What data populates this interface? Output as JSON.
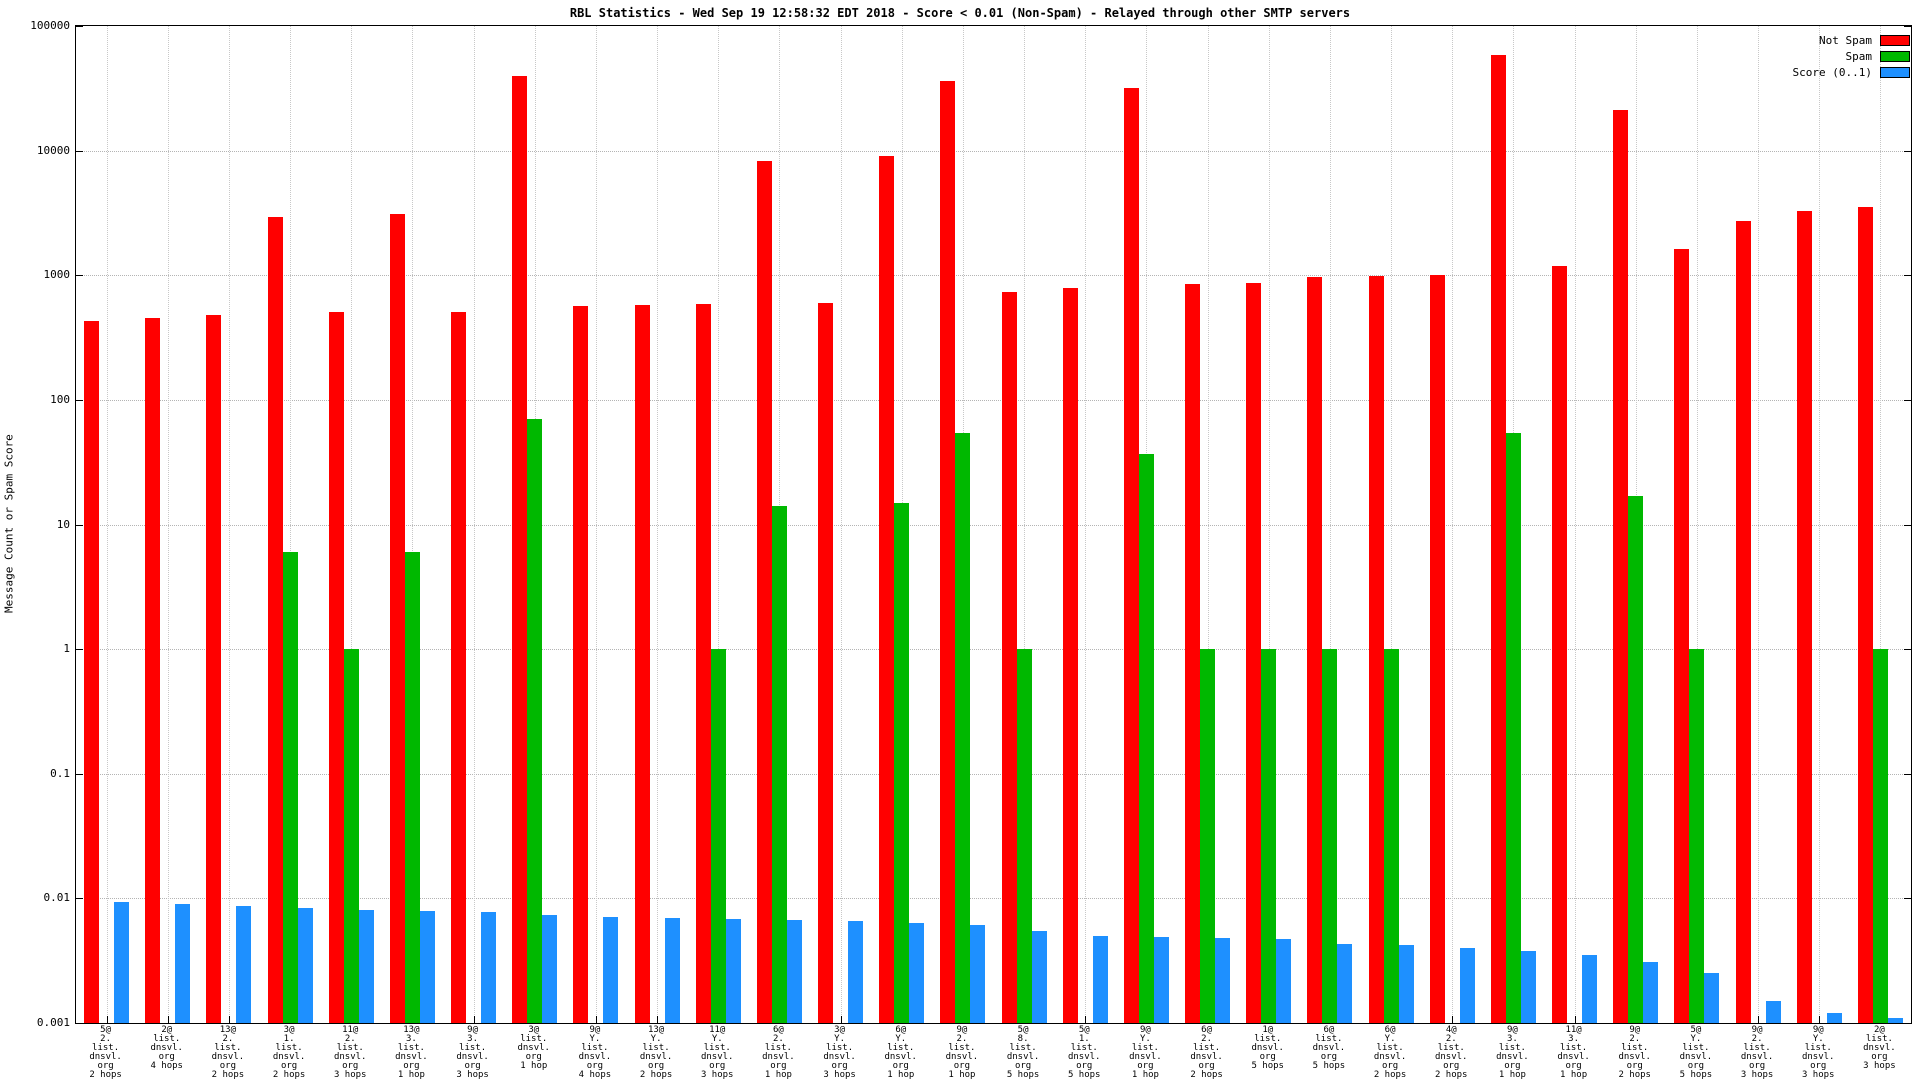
{
  "title": "RBL Statistics - Wed Sep 19 12:58:32 EDT 2018 - Score < 0.01 (Non-Spam) - Relayed through other SMTP servers",
  "ylabel": "Message Count or Spam Score",
  "legend": [
    {
      "label": "Not Spam",
      "color": "#ff0000"
    },
    {
      "label": "Spam",
      "color": "#00b800"
    },
    {
      "label": "Score (0..1)",
      "color": "#1e90ff"
    }
  ],
  "chart_data": {
    "type": "bar",
    "scale": "log",
    "ylim": [
      0.001,
      100000
    ],
    "yticks": [
      0.001,
      0.01,
      0.1,
      1,
      10,
      100,
      1000,
      10000,
      100000
    ],
    "grid": true,
    "legend_position": "top-right",
    "categories": [
      [
        "5@",
        "2.",
        "list.",
        "dnsvl.",
        "org",
        "2 hops"
      ],
      [
        "2@",
        "list.",
        "dnsvl.",
        "org",
        "4 hops"
      ],
      [
        "13@",
        "2.",
        "list.",
        "dnsvl.",
        "org",
        "2 hops"
      ],
      [
        "3@",
        "1.",
        "list.",
        "dnsvl.",
        "org",
        "2 hops"
      ],
      [
        "11@",
        "2.",
        "list.",
        "dnsvl.",
        "org",
        "3 hops"
      ],
      [
        "13@",
        "3.",
        "list.",
        "dnsvl.",
        "org",
        "1 hop"
      ],
      [
        "9@",
        "3.",
        "list.",
        "dnsvl.",
        "org",
        "3 hops"
      ],
      [
        "3@",
        "list.",
        "dnsvl.",
        "org",
        "1 hop"
      ],
      [
        "9@",
        "Y.",
        "list.",
        "dnsvl.",
        "org",
        "4 hops"
      ],
      [
        "13@",
        "Y.",
        "list.",
        "dnsvl.",
        "org",
        "2 hops"
      ],
      [
        "11@",
        "Y.",
        "list.",
        "dnsvl.",
        "org",
        "3 hops"
      ],
      [
        "6@",
        "2.",
        "list.",
        "dnsvl.",
        "org",
        "1 hop"
      ],
      [
        "3@",
        "Y.",
        "list.",
        "dnsvl.",
        "org",
        "3 hops"
      ],
      [
        "6@",
        "Y.",
        "list.",
        "dnsvl.",
        "org",
        "1 hop"
      ],
      [
        "9@",
        "2.",
        "list.",
        "dnsvl.",
        "org",
        "1 hop"
      ],
      [
        "5@",
        "8.",
        "list.",
        "dnsvl.",
        "org",
        "5 hops"
      ],
      [
        "5@",
        "1.",
        "list.",
        "dnsvl.",
        "org",
        "5 hops"
      ],
      [
        "9@",
        "Y.",
        "list.",
        "dnsvl.",
        "org",
        "1 hop"
      ],
      [
        "6@",
        "2.",
        "list.",
        "dnsvl.",
        "org",
        "2 hops"
      ],
      [
        "1@",
        "list.",
        "dnsvl.",
        "org",
        "5 hops"
      ],
      [
        "6@",
        "list.",
        "dnsvl.",
        "org",
        "5 hops"
      ],
      [
        "6@",
        "Y.",
        "list.",
        "dnsvl.",
        "org",
        "2 hops"
      ],
      [
        "4@",
        "2.",
        "list.",
        "dnsvl.",
        "org",
        "2 hops"
      ],
      [
        "9@",
        "3.",
        "list.",
        "dnsvl.",
        "org",
        "1 hop"
      ],
      [
        "11@",
        "3.",
        "list.",
        "dnsvl.",
        "org",
        "1 hop"
      ],
      [
        "9@",
        "2.",
        "list.",
        "dnsvl.",
        "org",
        "2 hops"
      ],
      [
        "5@",
        "Y.",
        "list.",
        "dnsvl.",
        "org",
        "5 hops"
      ],
      [
        "9@",
        "2.",
        "list.",
        "dnsvl.",
        "org",
        "3 hops"
      ],
      [
        "9@",
        "Y.",
        "list.",
        "dnsvl.",
        "org",
        "3 hops"
      ],
      [
        "2@",
        "list.",
        "dnsvl.",
        "org",
        "3 hops"
      ]
    ],
    "series": [
      {
        "name": "Not Spam",
        "color": "#ff0000",
        "values": [
          430,
          450,
          480,
          2950,
          505,
          3100,
          510,
          40000,
          570,
          575,
          590,
          8300,
          600,
          9000,
          36000,
          740,
          790,
          32000,
          850,
          860,
          970,
          980,
          1000,
          59000,
          1180,
          21000,
          1630,
          2750,
          3300,
          3550
        ]
      },
      {
        "name": "Spam",
        "color": "#00b800",
        "values": [
          0,
          0,
          0,
          6,
          1,
          6,
          0,
          70,
          0,
          0,
          1,
          14,
          0,
          15,
          54,
          1,
          0,
          37,
          1,
          1,
          1,
          1,
          0,
          54,
          0,
          17,
          1,
          0,
          0,
          1
        ]
      },
      {
        "name": "Score (0..1)",
        "color": "#1e90ff",
        "values": [
          0.0093,
          0.009,
          0.0087,
          0.0083,
          0.0081,
          0.0079,
          0.0078,
          0.0074,
          0.0071,
          0.007,
          0.0068,
          0.0067,
          0.0066,
          0.0064,
          0.0061,
          0.0055,
          0.005,
          0.0049,
          0.0048,
          0.0047,
          0.0043,
          0.0042,
          0.004,
          0.0038,
          0.0035,
          0.0031,
          0.0025,
          0.0015,
          0.0012,
          0.0011
        ]
      }
    ]
  }
}
